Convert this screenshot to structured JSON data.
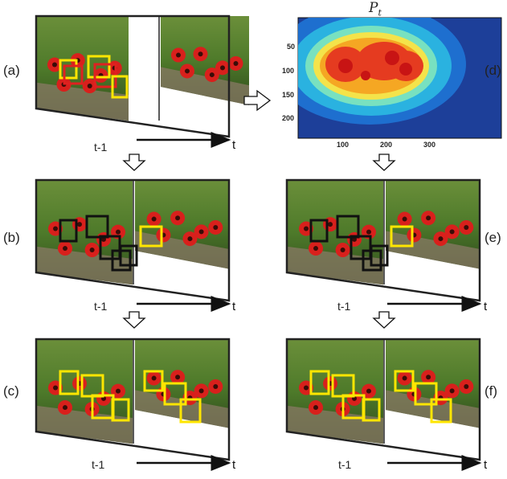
{
  "panels": [
    {
      "id": "a",
      "label": "(a)",
      "prev_label": "t-1",
      "axis_label": "t"
    },
    {
      "id": "b",
      "label": "(b)",
      "prev_label": "t-1",
      "axis_label": "t"
    },
    {
      "id": "c",
      "label": "(c)",
      "prev_label": "t-1",
      "axis_label": "t"
    },
    {
      "id": "d",
      "label": "(d)"
    },
    {
      "id": "e",
      "label": "(e)",
      "prev_label": "t-1",
      "axis_label": "t"
    },
    {
      "id": "f",
      "label": "(f)",
      "prev_label": "t-1",
      "axis_label": "t"
    }
  ],
  "heatmap": {
    "title_base": "P",
    "title_sub": "t",
    "x_ticks": [
      "100",
      "200",
      "300"
    ],
    "y_ticks": [
      "50",
      "100",
      "150",
      "200"
    ]
  },
  "colors": {
    "box_yellow": "#ffe600",
    "box_red": "#e02020",
    "box_black": "#111111",
    "frame": "#222222"
  }
}
